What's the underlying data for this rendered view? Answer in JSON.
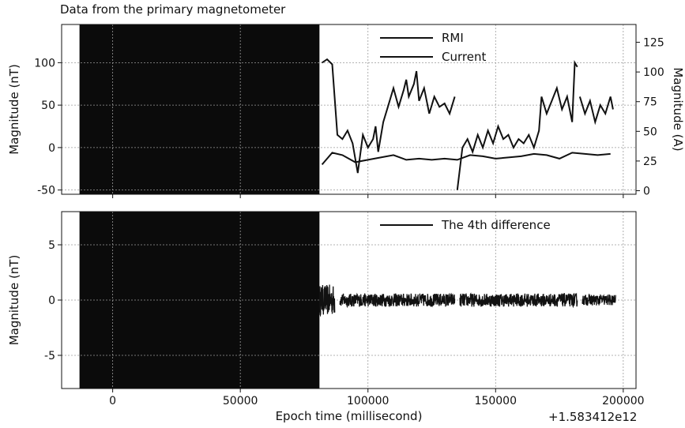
{
  "chart_data": [
    {
      "type": "line",
      "title": "Data from the primary magnetometer",
      "xlabel": "",
      "ylabel": "Magnitude (nT)",
      "y2label": "Magnitude (A)",
      "xlim": [
        -20000,
        205000
      ],
      "ylim": [
        -55,
        145
      ],
      "y2lim": [
        -3,
        140
      ],
      "xticks": [
        0,
        50000,
        100000,
        150000,
        200000
      ],
      "yticks": [
        -50,
        0,
        50,
        100
      ],
      "ytick_labels": [
        "-50",
        "0",
        "50",
        "100"
      ],
      "y2ticks": [
        0,
        25,
        50,
        75,
        100,
        125
      ],
      "y2tick_labels": [
        "0",
        "25",
        "50",
        "75",
        "100",
        "125"
      ],
      "grid": true,
      "legend_position": "top-right",
      "dark_band_x": [
        -13000,
        81000
      ],
      "series": [
        {
          "name": "RMI",
          "axis": "left",
          "x": [
            82000,
            84000,
            86000,
            88000,
            90000,
            92000,
            94000,
            96000,
            98000,
            100000,
            102000,
            103000,
            104000,
            106000,
            108000,
            110000,
            112000,
            114000,
            115000,
            116000,
            118000,
            119000,
            120000,
            122000,
            124000,
            126000,
            128000,
            130000,
            132000,
            134000
          ],
          "values": [
            100,
            104,
            98,
            15,
            10,
            20,
            5,
            -30,
            15,
            0,
            10,
            25,
            -5,
            30,
            50,
            70,
            48,
            68,
            80,
            60,
            75,
            90,
            55,
            70,
            40,
            60,
            48,
            52,
            40,
            60
          ]
        },
        {
          "name": "",
          "axis": "left",
          "x": [
            135000,
            137000,
            139000,
            141000,
            143000,
            145000,
            147000,
            149000,
            151000,
            153000,
            155000,
            157000,
            159000,
            161000,
            163000,
            165000,
            167000,
            168000,
            170000,
            172000,
            174000,
            176000,
            178000,
            180000,
            181000,
            182000
          ],
          "values": [
            -50,
            0,
            10,
            -5,
            15,
            0,
            20,
            5,
            25,
            10,
            15,
            0,
            10,
            5,
            15,
            0,
            20,
            60,
            40,
            55,
            70,
            45,
            60,
            30,
            100,
            95
          ]
        },
        {
          "name": "",
          "axis": "left",
          "x": [
            183000,
            185000,
            187000,
            189000,
            191000,
            193000,
            195000,
            196000
          ],
          "values": [
            60,
            40,
            55,
            30,
            50,
            40,
            60,
            45
          ]
        },
        {
          "name": "Current",
          "axis": "right",
          "x": [
            82000,
            86000,
            90000,
            95000,
            100000,
            105000,
            110000,
            115000,
            120000,
            125000,
            130000,
            135000,
            140000,
            145000,
            150000,
            155000,
            160000,
            165000,
            170000,
            175000,
            180000,
            185000,
            190000,
            195000
          ],
          "values": [
            22,
            32,
            30,
            24,
            26,
            28,
            30,
            26,
            27,
            26,
            27,
            26,
            30,
            29,
            27,
            28,
            29,
            31,
            30,
            27,
            32,
            31,
            30,
            31
          ]
        }
      ]
    },
    {
      "type": "line",
      "title": "",
      "xlabel": "Epoch time (millisecond)",
      "ylabel": "Magnitude (nT)",
      "xlim": [
        -20000,
        205000
      ],
      "ylim": [
        -8,
        8
      ],
      "xticks": [
        0,
        50000,
        100000,
        150000,
        200000
      ],
      "xtick_labels": [
        "0",
        "50000",
        "100000",
        "150000",
        "200000"
      ],
      "yticks": [
        -5,
        0,
        5
      ],
      "ytick_labels": [
        "-5",
        "0",
        "5"
      ],
      "x_offset_label": "+1.583412e12",
      "grid": true,
      "legend_position": "top-right",
      "dark_band_x": [
        -13000,
        81000
      ],
      "series": [
        {
          "name": "The 4th difference",
          "segments": [
            {
              "x_start": 81000,
              "x_end": 87000,
              "amplitude": 1.4
            },
            {
              "x_start": 89000,
              "x_end": 134000,
              "amplitude": 0.6
            },
            {
              "x_start": 136000,
              "x_end": 182000,
              "amplitude": 0.6
            },
            {
              "x_start": 184000,
              "x_end": 197000,
              "amplitude": 0.5
            }
          ]
        }
      ]
    }
  ]
}
